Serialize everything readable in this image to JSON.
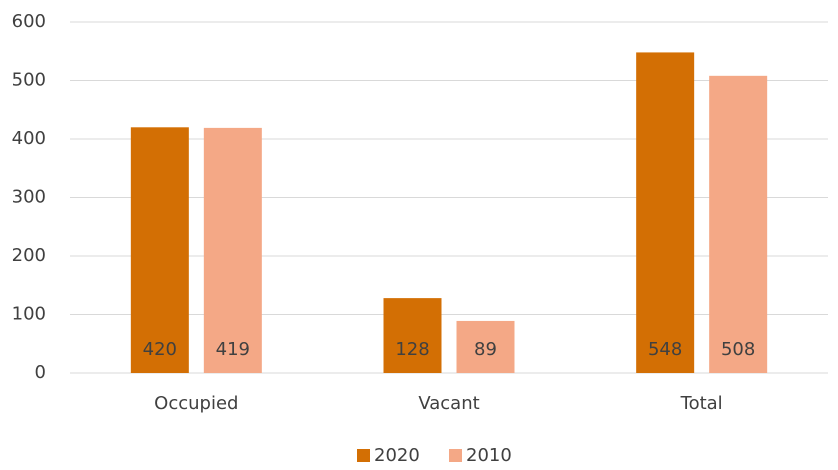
{
  "chart_data": {
    "type": "bar",
    "categories": [
      "Occupied",
      "Vacant",
      "Total"
    ],
    "series": [
      {
        "name": "2020",
        "color": "#d36f04",
        "values": [
          420,
          128,
          548
        ]
      },
      {
        "name": "2010",
        "color": "#f4a886",
        "values": [
          419,
          89,
          508
        ]
      }
    ],
    "ylim": [
      0,
      600
    ],
    "yticks": [
      0,
      100,
      200,
      300,
      400,
      500,
      600
    ],
    "grid": true,
    "legend": "bottom"
  }
}
